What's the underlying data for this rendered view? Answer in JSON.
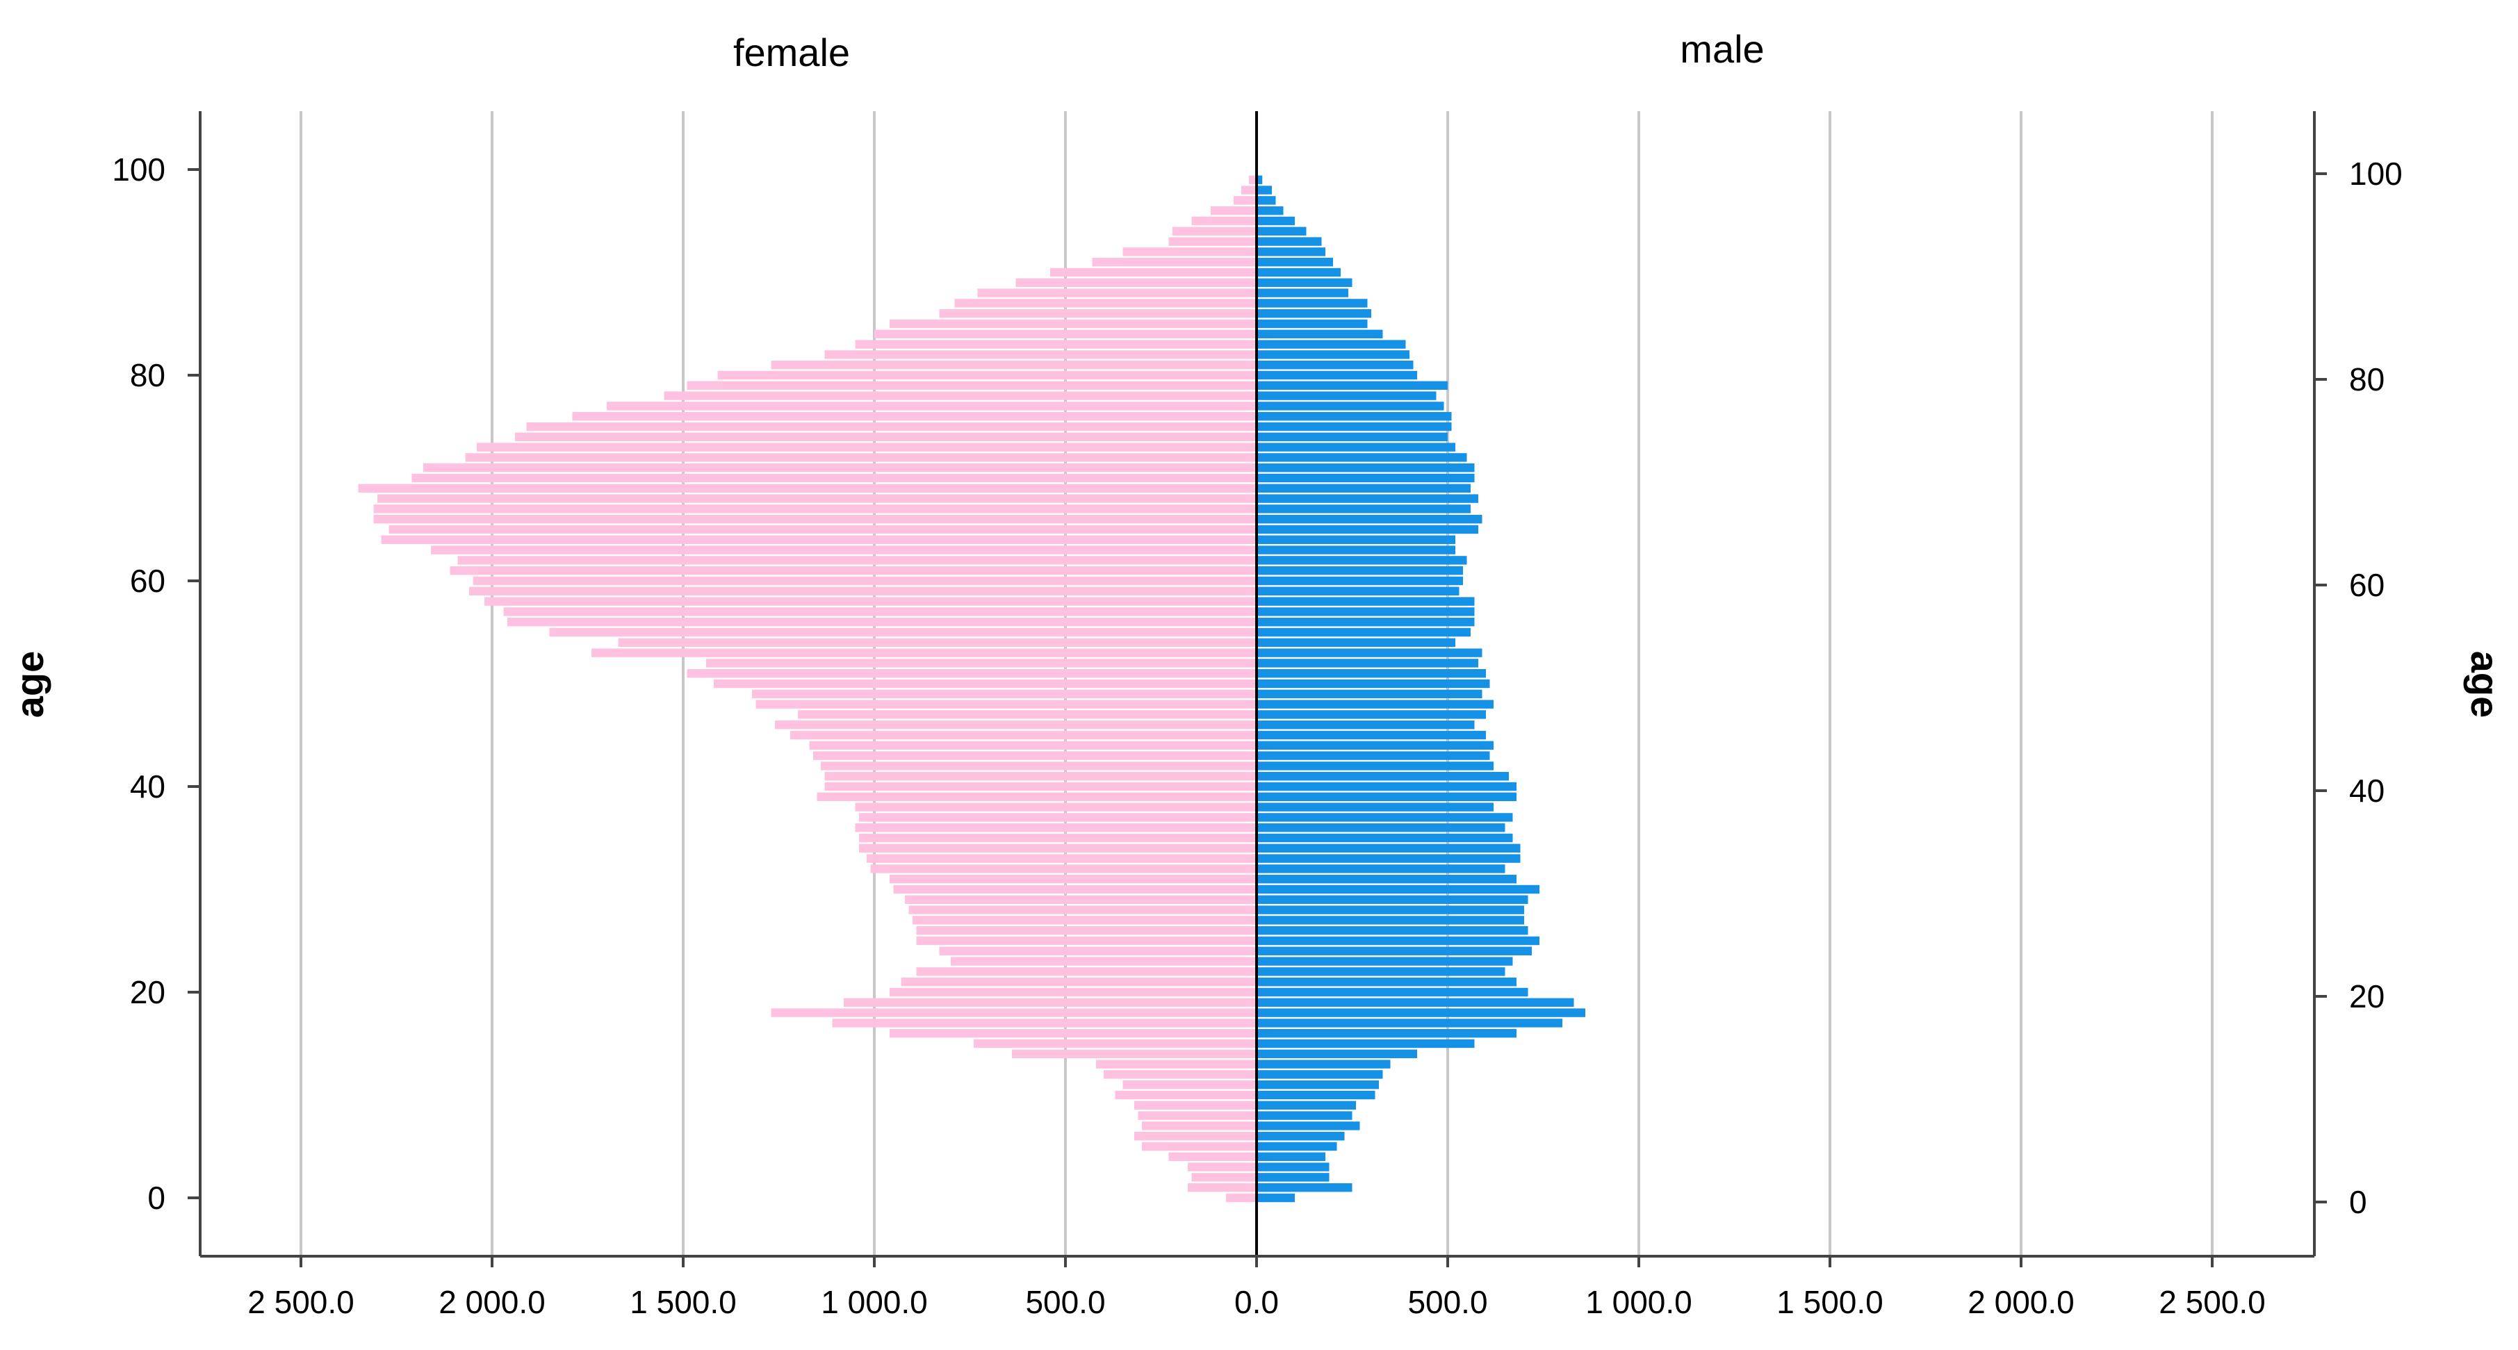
{
  "chart_data": {
    "type": "bar",
    "subtype": "population-pyramid",
    "orientation": "horizontal",
    "panels": [
      {
        "name": "female",
        "title": "female",
        "color": "#ffc1e0",
        "direction": "left"
      },
      {
        "name": "male",
        "title": "male",
        "color": "#1591e6",
        "direction": "right"
      }
    ],
    "ylabel_left": "age",
    "ylabel_right": "age",
    "ylim": [
      -5,
      105
    ],
    "y_ticks": [
      "0",
      "20",
      "40",
      "60",
      "80",
      "100"
    ],
    "xlim": [
      -2800,
      2800
    ],
    "x_tick_values": [
      -2500,
      -2000,
      -1500,
      -1000,
      -500,
      0,
      500,
      1000,
      1500,
      2000,
      2500
    ],
    "x_tick_labels": [
      "2 500.0",
      "2 000.0",
      "1 500.0",
      "1 000.0",
      "500.0",
      "0.0",
      "500.0",
      "1 000.0",
      "1 500.0",
      "2 000.0",
      "2 500.0"
    ],
    "grid": true,
    "ages": [
      0,
      1,
      2,
      3,
      4,
      5,
      6,
      7,
      8,
      9,
      10,
      11,
      12,
      13,
      14,
      15,
      16,
      17,
      18,
      19,
      20,
      21,
      22,
      23,
      24,
      25,
      26,
      27,
      28,
      29,
      30,
      31,
      32,
      33,
      34,
      35,
      36,
      37,
      38,
      39,
      40,
      41,
      42,
      43,
      44,
      45,
      46,
      47,
      48,
      49,
      50,
      51,
      52,
      53,
      54,
      55,
      56,
      57,
      58,
      59,
      60,
      61,
      62,
      63,
      64,
      65,
      66,
      67,
      68,
      69,
      70,
      71,
      72,
      73,
      74,
      75,
      76,
      77,
      78,
      79,
      80,
      81,
      82,
      83,
      84,
      85,
      86,
      87,
      88,
      89,
      90,
      91,
      92,
      93,
      94,
      95,
      96,
      97,
      98,
      99
    ],
    "series": [
      {
        "name": "female",
        "color": "#ffc1e0",
        "values": [
          80,
          180,
          170,
          180,
          230,
          300,
          320,
          300,
          310,
          320,
          370,
          350,
          400,
          420,
          640,
          740,
          960,
          1110,
          1270,
          1080,
          960,
          930,
          890,
          800,
          830,
          890,
          890,
          900,
          910,
          920,
          950,
          960,
          1010,
          1020,
          1040,
          1040,
          1050,
          1040,
          1050,
          1150,
          1130,
          1130,
          1140,
          1160,
          1170,
          1220,
          1260,
          1200,
          1310,
          1320,
          1420,
          1490,
          1440,
          1740,
          1670,
          1850,
          1960,
          1970,
          2020,
          2060,
          2050,
          2110,
          2090,
          2160,
          2290,
          2270,
          2310,
          2310,
          2300,
          2350,
          2210,
          2180,
          2070,
          2040,
          1940,
          1910,
          1790,
          1700,
          1550,
          1490,
          1410,
          1270,
          1130,
          1050,
          1000,
          960,
          830,
          790,
          730,
          630,
          540,
          430,
          350,
          230,
          220,
          170,
          120,
          60,
          40,
          20
        ]
      },
      {
        "name": "male",
        "color": "#1591e6",
        "values": [
          100,
          250,
          190,
          190,
          180,
          210,
          230,
          270,
          250,
          260,
          310,
          320,
          330,
          350,
          420,
          570,
          680,
          800,
          860,
          830,
          710,
          680,
          650,
          670,
          720,
          740,
          710,
          700,
          700,
          710,
          740,
          680,
          650,
          690,
          690,
          670,
          650,
          670,
          620,
          680,
          680,
          660,
          620,
          610,
          620,
          600,
          570,
          600,
          620,
          590,
          610,
          600,
          580,
          590,
          520,
          560,
          570,
          570,
          570,
          530,
          540,
          540,
          550,
          520,
          520,
          580,
          590,
          560,
          580,
          560,
          570,
          570,
          550,
          520,
          500,
          510,
          510,
          490,
          470,
          500,
          420,
          410,
          400,
          390,
          330,
          290,
          300,
          290,
          240,
          250,
          220,
          200,
          180,
          170,
          130,
          100,
          70,
          50,
          40,
          15
        ]
      }
    ]
  }
}
